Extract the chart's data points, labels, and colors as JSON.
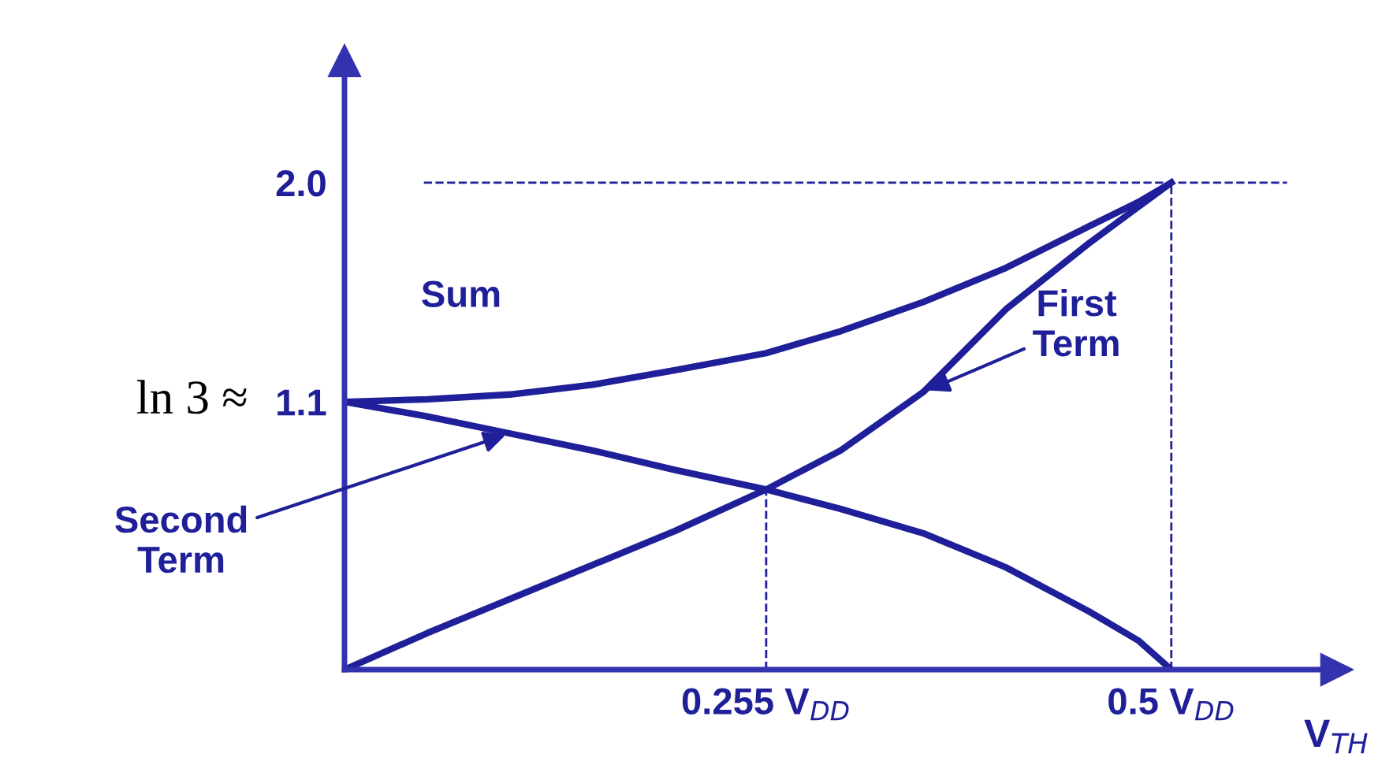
{
  "chart_data": {
    "type": "line",
    "xlabel": "V$_{TH}$",
    "x": [
      0,
      0.05,
      0.1,
      0.15,
      0.2,
      0.255,
      0.3,
      0.35,
      0.4,
      0.45,
      0.48,
      0.5
    ],
    "series": [
      {
        "name": "Sum",
        "color": "#1f1f99",
        "values": [
          1.1,
          1.11,
          1.13,
          1.17,
          1.23,
          1.3,
          1.39,
          1.51,
          1.65,
          1.82,
          1.92,
          2.0
        ]
      },
      {
        "name": "First Term",
        "color": "#1f1f99",
        "values": [
          0,
          0.15,
          0.29,
          0.43,
          0.57,
          0.74,
          0.9,
          1.14,
          1.48,
          1.75,
          1.9,
          2.0
        ]
      },
      {
        "name": "Second Term",
        "color": "#1f1f99",
        "values": [
          1.1,
          1.04,
          0.97,
          0.9,
          0.82,
          0.74,
          0.66,
          0.56,
          0.42,
          0.24,
          0.12,
          0
        ]
      }
    ],
    "xlim": [
      0,
      0.6
    ],
    "ylim": [
      0,
      2.5
    ],
    "xticks": [
      {
        "value": 0.255,
        "label": "0.255 V$_{DD}$"
      },
      {
        "value": 0.5,
        "label": "0.5 V$_{DD}$"
      }
    ],
    "yticks": [
      1.1,
      {
        "value": 2.0,
        "label": "2.0"
      }
    ],
    "annotations": [
      {
        "text": "ln 3 ≈",
        "x": 0,
        "y": 1.1
      }
    ],
    "ref_lines": [
      {
        "axis": "y",
        "value": 2.0,
        "line_style": "dashed"
      },
      {
        "axis": "x",
        "value": 0.255,
        "line_style": "dashed"
      },
      {
        "axis": "x",
        "value": 0.5,
        "line_style": "dashed"
      }
    ],
    "grid": false,
    "legend": false,
    "marker": "none",
    "line_style": "solid"
  }
}
